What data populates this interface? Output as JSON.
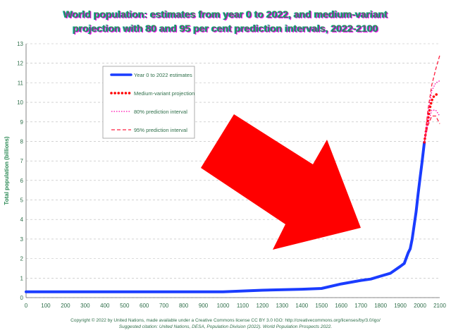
{
  "header": {
    "title_line1": "World population: estimates from year 0 to 2022, and medium-variant",
    "title_line2": "projection with 80 and 95 per cent prediction intervals, 2022-2100"
  },
  "footer": {
    "copyright": "Copyright © 2022 by United Nations, made available under a Creative Commons license CC BY 3.0 IGO: http://creativecommons.org/licenses/by/3.0/igo/",
    "citation": "Suggested citation: United Nations, DESA, Population Division (2022). World Population Prospects 2022."
  },
  "overlay": {
    "arrow_color": "#ff0000",
    "arrow_direction": "down-right"
  },
  "chart_data": {
    "type": "line",
    "title": "World population: estimates from year 0 to 2022, and medium-variant projection with 80 and 95 per cent prediction intervals, 2022-2100",
    "xlabel": "",
    "ylabel": "Total population (billions)",
    "xlim": [
      0,
      2100
    ],
    "ylim": [
      0,
      13
    ],
    "x_ticks": [
      0,
      100,
      200,
      300,
      400,
      500,
      600,
      700,
      800,
      900,
      1000,
      1100,
      1200,
      1300,
      1400,
      1500,
      1600,
      1700,
      1800,
      1900,
      2000,
      2100
    ],
    "y_ticks": [
      0,
      1,
      2,
      3,
      4,
      5,
      6,
      7,
      8,
      9,
      10,
      11,
      12,
      13
    ],
    "grid": "horizontal dashed",
    "legend_position": "top-left",
    "legend": [
      "Year 0 to 2022 estimates",
      "Medium-variant projection",
      "80% prediction interval",
      "95% prediction interval"
    ],
    "colors": {
      "estimates": "#1a3cff",
      "medium": "#ff0000",
      "pi80": "#ff00aa",
      "pi95": "#ff2040"
    },
    "series": [
      {
        "name": "Year 0 to 2022 estimates",
        "style": "solid",
        "points": [
          [
            0,
            0.3
          ],
          [
            200,
            0.3
          ],
          [
            400,
            0.3
          ],
          [
            600,
            0.3
          ],
          [
            800,
            0.3
          ],
          [
            1000,
            0.3
          ],
          [
            1200,
            0.38
          ],
          [
            1400,
            0.43
          ],
          [
            1500,
            0.47
          ],
          [
            1600,
            0.7
          ],
          [
            1700,
            0.88
          ],
          [
            1750,
            0.95
          ],
          [
            1800,
            1.1
          ],
          [
            1850,
            1.25
          ],
          [
            1900,
            1.6
          ],
          [
            1920,
            1.75
          ],
          [
            1940,
            2.3
          ],
          [
            1950,
            2.5
          ],
          [
            1960,
            3.0
          ],
          [
            1970,
            3.7
          ],
          [
            1980,
            4.4
          ],
          [
            1990,
            5.3
          ],
          [
            2000,
            6.1
          ],
          [
            2010,
            6.9
          ],
          [
            2022,
            7.95
          ]
        ]
      },
      {
        "name": "Medium-variant projection",
        "style": "dots",
        "points": [
          [
            2022,
            7.95
          ],
          [
            2030,
            8.5
          ],
          [
            2040,
            9.1
          ],
          [
            2050,
            9.7
          ],
          [
            2060,
            10.1
          ],
          [
            2070,
            10.3
          ],
          [
            2080,
            10.4
          ],
          [
            2090,
            10.4
          ],
          [
            2100,
            10.4
          ]
        ]
      },
      {
        "name": "80% prediction interval (upper)",
        "style": "dotted",
        "points": [
          [
            2022,
            7.95
          ],
          [
            2040,
            9.4
          ],
          [
            2060,
            10.6
          ],
          [
            2080,
            11.0
          ],
          [
            2100,
            11.1
          ]
        ]
      },
      {
        "name": "80% prediction interval (lower)",
        "style": "dotted",
        "points": [
          [
            2022,
            7.95
          ],
          [
            2040,
            8.9
          ],
          [
            2060,
            9.6
          ],
          [
            2080,
            9.6
          ],
          [
            2100,
            9.3
          ]
        ]
      },
      {
        "name": "95% prediction interval (upper)",
        "style": "dashed",
        "points": [
          [
            2022,
            7.95
          ],
          [
            2040,
            9.6
          ],
          [
            2060,
            10.9
          ],
          [
            2080,
            11.7
          ],
          [
            2100,
            12.4
          ]
        ]
      },
      {
        "name": "95% prediction interval (lower)",
        "style": "dashed",
        "points": [
          [
            2022,
            7.95
          ],
          [
            2040,
            8.8
          ],
          [
            2060,
            9.3
          ],
          [
            2080,
            9.3
          ],
          [
            2100,
            8.9
          ]
        ]
      }
    ]
  }
}
